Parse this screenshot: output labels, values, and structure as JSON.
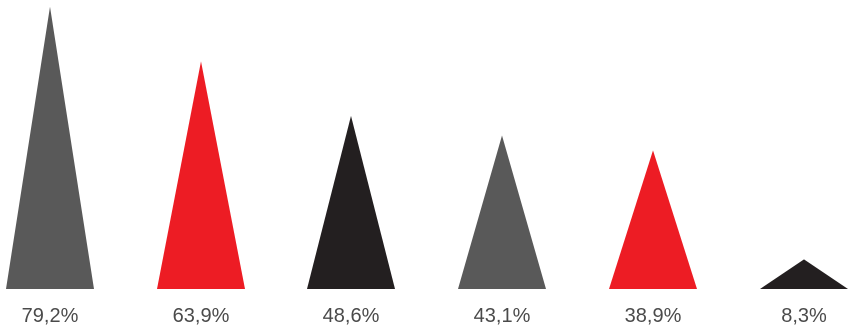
{
  "chart_data": {
    "type": "bar",
    "marker": "triangle",
    "title": "",
    "xlabel": "",
    "ylabel": "",
    "ylim": [
      0,
      80
    ],
    "grid": false,
    "legend": "none",
    "values": [
      79.2,
      63.9,
      48.6,
      43.1,
      38.9,
      8.3
    ],
    "labels": [
      "79,2%",
      "63,9%",
      "48,6%",
      "43,1%",
      "38,9%",
      "8,3%"
    ],
    "colors": [
      "#595959",
      "#ed1c24",
      "#231f20",
      "#595959",
      "#ed1c24",
      "#231f20"
    ]
  }
}
